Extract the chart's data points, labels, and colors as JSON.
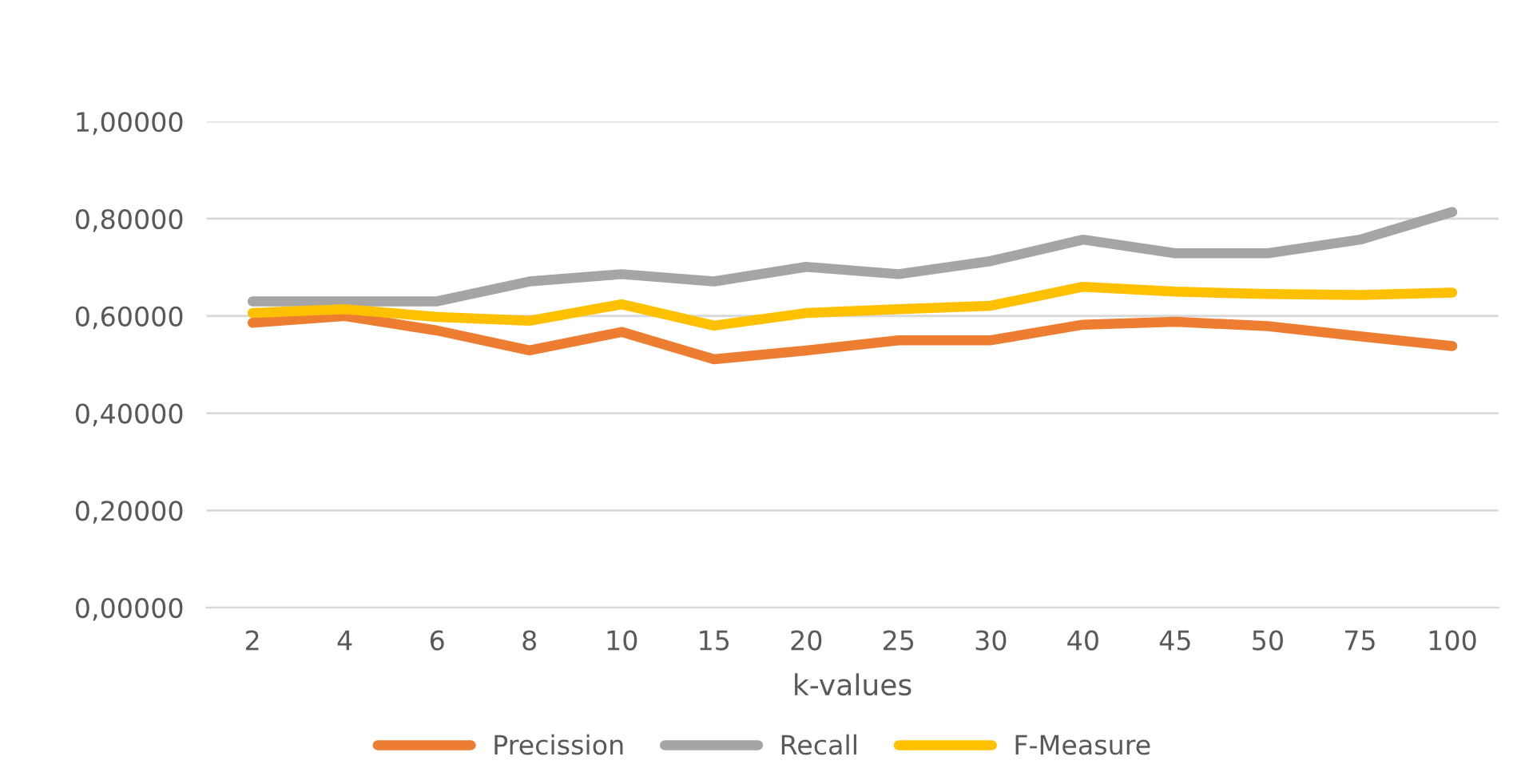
{
  "chart_data": {
    "type": "line",
    "xlabel": "k-values",
    "categories": [
      "2",
      "4",
      "6",
      "8",
      "10",
      "15",
      "20",
      "25",
      "30",
      "40",
      "45",
      "50",
      "75",
      "100"
    ],
    "series": [
      {
        "name": "Precission",
        "color": "#ed7d31",
        "values": [
          0.586,
          0.6,
          0.57,
          0.529,
          0.567,
          0.511,
          0.529,
          0.55,
          0.55,
          0.582,
          0.588,
          0.579,
          0.558,
          0.538
        ]
      },
      {
        "name": "Recall",
        "color": "#a5a5a5",
        "values": [
          0.63,
          0.63,
          0.63,
          0.671,
          0.686,
          0.671,
          0.701,
          0.686,
          0.713,
          0.757,
          0.729,
          0.729,
          0.757,
          0.814
        ]
      },
      {
        "name": "F-Measure",
        "color": "#ffc000",
        "values": [
          0.606,
          0.614,
          0.598,
          0.59,
          0.624,
          0.58,
          0.606,
          0.614,
          0.621,
          0.66,
          0.65,
          0.645,
          0.643,
          0.648
        ]
      }
    ],
    "ylim": [
      0,
      1.0
    ],
    "yticks": [
      {
        "value": 0,
        "label": "0,00000"
      },
      {
        "value": 0.2,
        "label": "0,20000"
      },
      {
        "value": 0.4,
        "label": "0,40000"
      },
      {
        "value": 0.6,
        "label": "0,60000"
      },
      {
        "value": 0.8,
        "label": "0,80000"
      },
      {
        "value": 1.0,
        "label": "1,00000"
      }
    ],
    "grid": "y",
    "legend": "bottom",
    "marker": "none",
    "line_style": "solid"
  }
}
